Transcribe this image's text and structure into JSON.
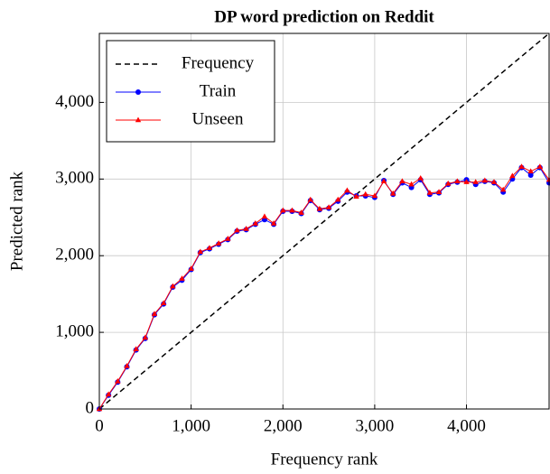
{
  "chart_data": {
    "type": "line",
    "title": "DP word prediction on Reddit",
    "x_label": "Frequency rank",
    "y_label": "Predicted rank",
    "xlim": [
      0,
      4900
    ],
    "ylim": [
      0,
      4900
    ],
    "xticks": [
      0,
      {
        "value": 1000,
        "label": "1,000"
      },
      {
        "value": 2000,
        "label": "2,000"
      },
      {
        "value": 3000,
        "label": "3,000"
      },
      {
        "value": 4000,
        "label": "4,000"
      }
    ],
    "yticks": [
      0,
      {
        "value": 1000,
        "label": "1,000"
      },
      {
        "value": 2000,
        "label": "2,000"
      },
      {
        "value": 3000,
        "label": "3,000"
      },
      {
        "value": 4000,
        "label": "4,000"
      }
    ],
    "grid": true,
    "legend": "upper left",
    "series": [
      {
        "name": "Frequency",
        "color": "#000000",
        "dashed": true,
        "marker": "none",
        "x": [
          0,
          4900
        ],
        "values": [
          0,
          4900
        ]
      },
      {
        "name": "Train",
        "color": "#0000ff",
        "marker": "circle",
        "x": [
          0,
          100,
          200,
          300,
          400,
          500,
          600,
          700,
          800,
          900,
          1000,
          1100,
          1200,
          1300,
          1400,
          1500,
          1600,
          1700,
          1800,
          1900,
          2000,
          2100,
          2200,
          2300,
          2400,
          2500,
          2600,
          2700,
          2800,
          2900,
          3000,
          3100,
          3200,
          3300,
          3400,
          3500,
          3600,
          3700,
          3800,
          3900,
          4000,
          4100,
          4200,
          4300,
          4400,
          4500,
          4600,
          4700,
          4800,
          4900
        ],
        "values": [
          0,
          180,
          350,
          550,
          770,
          920,
          1230,
          1370,
          1590,
          1680,
          1820,
          2040,
          2090,
          2150,
          2210,
          2320,
          2340,
          2410,
          2470,
          2410,
          2580,
          2580,
          2550,
          2720,
          2600,
          2620,
          2710,
          2830,
          2780,
          2780,
          2760,
          2980,
          2800,
          2950,
          2890,
          2990,
          2800,
          2820,
          2930,
          2960,
          2990,
          2930,
          2970,
          2950,
          2830,
          3000,
          3150,
          3050,
          3150,
          2950
        ]
      },
      {
        "name": "Unseen",
        "color": "#ff0000",
        "marker": "triangle",
        "x": [
          0,
          100,
          200,
          300,
          400,
          500,
          600,
          700,
          800,
          900,
          1000,
          1100,
          1200,
          1300,
          1400,
          1500,
          1600,
          1700,
          1800,
          1900,
          2000,
          2100,
          2200,
          2300,
          2400,
          2500,
          2600,
          2700,
          2800,
          2900,
          3000,
          3100,
          3200,
          3300,
          3400,
          3500,
          3600,
          3700,
          3800,
          3900,
          4000,
          4100,
          4200,
          4300,
          4400,
          4500,
          4600,
          4700,
          4800,
          4900
        ],
        "values": [
          0,
          190,
          360,
          560,
          780,
          930,
          1240,
          1380,
          1600,
          1700,
          1830,
          2050,
          2100,
          2160,
          2220,
          2330,
          2350,
          2420,
          2510,
          2420,
          2590,
          2590,
          2560,
          2730,
          2610,
          2630,
          2730,
          2850,
          2770,
          2800,
          2780,
          2970,
          2810,
          2970,
          2930,
          3010,
          2820,
          2830,
          2940,
          2970,
          2960,
          2960,
          2980,
          2960,
          2860,
          3040,
          3160,
          3100,
          3160,
          2990
        ]
      }
    ]
  }
}
